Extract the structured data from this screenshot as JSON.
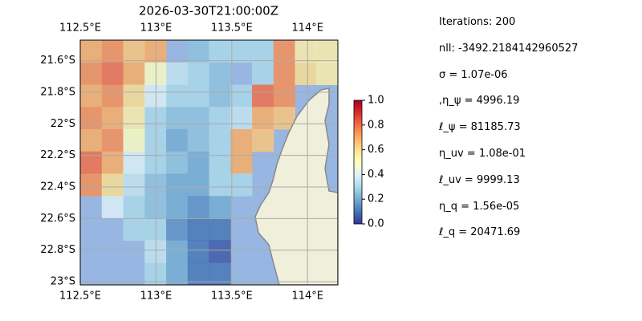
{
  "chart_data": {
    "type": "heatmap-map",
    "title": "2026-03-30T21:00:00Z",
    "xlim": [
      112.5,
      114.2
    ],
    "ylim": [
      -23.02,
      -21.47
    ],
    "xticks": [
      {
        "value": 112.5,
        "label": "112.5°E"
      },
      {
        "value": 113,
        "label": "113°E"
      },
      {
        "value": 113.5,
        "label": "113.5°E"
      },
      {
        "value": 114,
        "label": "114°E"
      }
    ],
    "yticks": [
      {
        "value": -21.6,
        "label": "21.6°S"
      },
      {
        "value": -21.8,
        "label": "21.8°S"
      },
      {
        "value": -22,
        "label": "22°S"
      },
      {
        "value": -22.2,
        "label": "22.2°S"
      },
      {
        "value": -22.4,
        "label": "22.4°S"
      },
      {
        "value": -22.6,
        "label": "22.6°S"
      },
      {
        "value": -22.8,
        "label": "22.8°S"
      },
      {
        "value": -23,
        "label": "23°S"
      }
    ],
    "grid": true,
    "colormap": "RdYlBu_r",
    "clim": [
      0,
      1
    ],
    "cticks": [
      {
        "value": 0,
        "label": "0.0"
      },
      {
        "value": 0.2,
        "label": "0.2"
      },
      {
        "value": 0.4,
        "label": "0.4"
      },
      {
        "value": 0.6,
        "label": "0.6"
      },
      {
        "value": 0.8,
        "label": "0.8"
      },
      {
        "value": 1,
        "label": "1.0"
      }
    ],
    "field": [
      [
        0.7,
        0.75,
        0.65,
        0.7,
        null,
        0.25,
        0.3,
        0.3,
        0.3,
        0.75,
        0.55,
        0.55
      ],
      [
        0.75,
        0.8,
        0.7,
        0.5,
        0.35,
        0.3,
        0.25,
        null,
        0.3,
        0.75,
        0.6,
        0.55
      ],
      [
        0.7,
        0.75,
        0.6,
        0.4,
        0.3,
        0.3,
        0.25,
        0.3,
        0.8,
        0.75,
        null,
        null
      ],
      [
        0.75,
        0.7,
        0.55,
        0.3,
        0.25,
        0.25,
        0.3,
        0.35,
        0.7,
        0.65,
        null,
        null
      ],
      [
        0.7,
        0.75,
        0.5,
        0.3,
        0.2,
        0.25,
        0.3,
        0.7,
        0.65,
        null,
        null,
        null
      ],
      [
        0.8,
        0.7,
        0.4,
        0.3,
        0.25,
        0.2,
        0.3,
        0.7,
        null,
        null,
        null,
        null
      ],
      [
        0.75,
        0.6,
        0.35,
        0.25,
        0.2,
        0.2,
        0.3,
        0.3,
        null,
        null,
        null,
        null
      ],
      [
        null,
        0.4,
        0.3,
        0.25,
        0.2,
        0.15,
        0.2,
        null,
        null,
        null,
        null,
        null
      ],
      [
        null,
        null,
        0.3,
        0.3,
        0.15,
        0.1,
        0.1,
        null,
        null,
        null,
        null,
        null
      ],
      [
        null,
        null,
        null,
        0.35,
        0.2,
        0.1,
        0.05,
        null,
        null,
        null,
        null,
        null
      ],
      [
        null,
        null,
        null,
        0.3,
        0.2,
        0.1,
        0.1,
        null,
        null,
        null,
        null,
        null
      ]
    ]
  },
  "info": [
    "Iterations: 200",
    "nll: -3492.2184142960527",
    "σ = 1.07e-06",
    ",η_ψ = 4996.19",
    "ℓ_ψ = 81185.73",
    "η_uv = 1.08e-01",
    "ℓ_uv = 9999.13",
    "η_q = 1.56e-05",
    "ℓ_q = 20471.69"
  ]
}
